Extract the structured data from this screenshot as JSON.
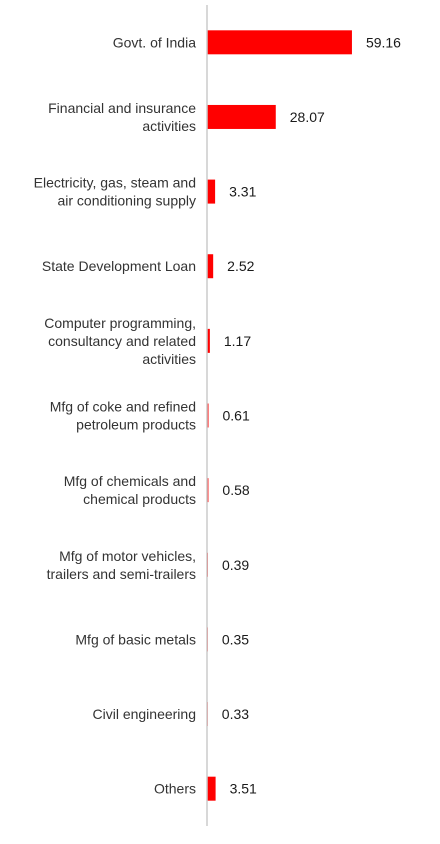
{
  "chart_data": {
    "type": "bar",
    "orientation": "horizontal",
    "categories": [
      [
        "Govt. of India"
      ],
      [
        "Financial and insurance",
        "activities"
      ],
      [
        "Electricity, gas, steam and",
        "air conditioning supply"
      ],
      [
        "State Development Loan"
      ],
      [
        "Computer programming,",
        "consultancy and related",
        "activities"
      ],
      [
        "Mfg of coke and refined",
        "petroleum products"
      ],
      [
        "Mfg of chemicals and",
        "chemical products"
      ],
      [
        "Mfg of motor vehicles,",
        "trailers and semi-trailers"
      ],
      [
        "Mfg of basic metals"
      ],
      [
        "Civil engineering"
      ],
      [
        "Others"
      ]
    ],
    "values": [
      59.16,
      28.07,
      3.31,
      2.52,
      1.17,
      0.61,
      0.58,
      0.39,
      0.35,
      0.33,
      3.51
    ],
    "value_labels": [
      "59.16",
      "28.07",
      "3.31",
      "2.52",
      "1.17",
      "0.61",
      "0.58",
      "0.39",
      "0.35",
      "0.33",
      "3.51"
    ],
    "title": "",
    "xlabel": "",
    "ylabel": "",
    "xlim": [
      0,
      60
    ],
    "grid": false,
    "legend": "none",
    "colors": {
      "bar": "#ff0000",
      "axis": "#cccccc",
      "label": "#333333"
    }
  }
}
